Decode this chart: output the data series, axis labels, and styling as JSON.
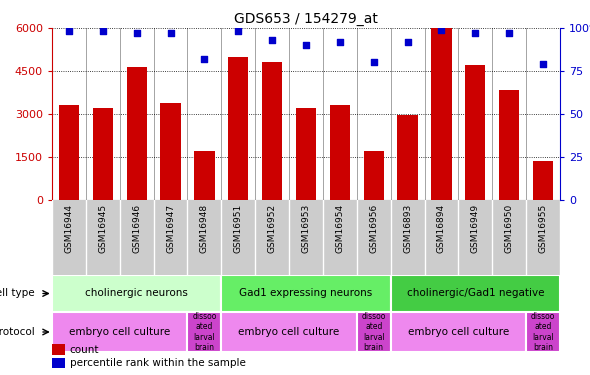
{
  "title": "GDS653 / 154279_at",
  "samples": [
    "GSM16944",
    "GSM16945",
    "GSM16946",
    "GSM16947",
    "GSM16948",
    "GSM16951",
    "GSM16952",
    "GSM16953",
    "GSM16954",
    "GSM16956",
    "GSM16893",
    "GSM16894",
    "GSM16949",
    "GSM16950",
    "GSM16955"
  ],
  "counts": [
    3300,
    3200,
    4650,
    3400,
    1700,
    5000,
    4800,
    3200,
    3300,
    1700,
    2950,
    6000,
    4700,
    3850,
    1350
  ],
  "percentiles": [
    98,
    98,
    97,
    97,
    82,
    98,
    93,
    90,
    92,
    80,
    92,
    99,
    97,
    97,
    79
  ],
  "ylim_left": [
    0,
    6000
  ],
  "ylim_right": [
    0,
    100
  ],
  "yticks_left": [
    0,
    1500,
    3000,
    4500,
    6000
  ],
  "ytick_labels_left": [
    "0",
    "1500",
    "3000",
    "4500",
    "6000"
  ],
  "yticks_right": [
    0,
    25,
    50,
    75,
    100
  ],
  "ytick_labels_right": [
    "0",
    "25",
    "50",
    "75",
    "100%"
  ],
  "bar_color": "#cc0000",
  "scatter_color": "#0000cc",
  "cell_type_groups": [
    {
      "label": "cholinergic neurons",
      "start": 0,
      "end": 5,
      "color": "#ccffcc"
    },
    {
      "label": "Gad1 expressing neurons",
      "start": 5,
      "end": 10,
      "color": "#66ee66"
    },
    {
      "label": "cholinergic/Gad1 negative",
      "start": 10,
      "end": 15,
      "color": "#44cc44"
    }
  ],
  "protocol_groups": [
    {
      "label": "embryo cell culture",
      "start": 0,
      "end": 4,
      "color": "#ee88ee"
    },
    {
      "label": "dissoo\nated\nlarval\nbrain",
      "start": 4,
      "end": 5,
      "color": "#cc44cc"
    },
    {
      "label": "embryo cell culture",
      "start": 5,
      "end": 9,
      "color": "#ee88ee"
    },
    {
      "label": "dissoo\nated\nlarval\nbrain",
      "start": 9,
      "end": 10,
      "color": "#cc44cc"
    },
    {
      "label": "embryo cell culture",
      "start": 10,
      "end": 14,
      "color": "#ee88ee"
    },
    {
      "label": "dissoo\nated\nlarval\nbrain",
      "start": 14,
      "end": 15,
      "color": "#cc44cc"
    }
  ],
  "xtick_bg_color": "#cccccc",
  "label_cell_type": "cell type",
  "label_protocol": "protocol",
  "legend_count": "count",
  "legend_pct": "percentile rank within the sample"
}
